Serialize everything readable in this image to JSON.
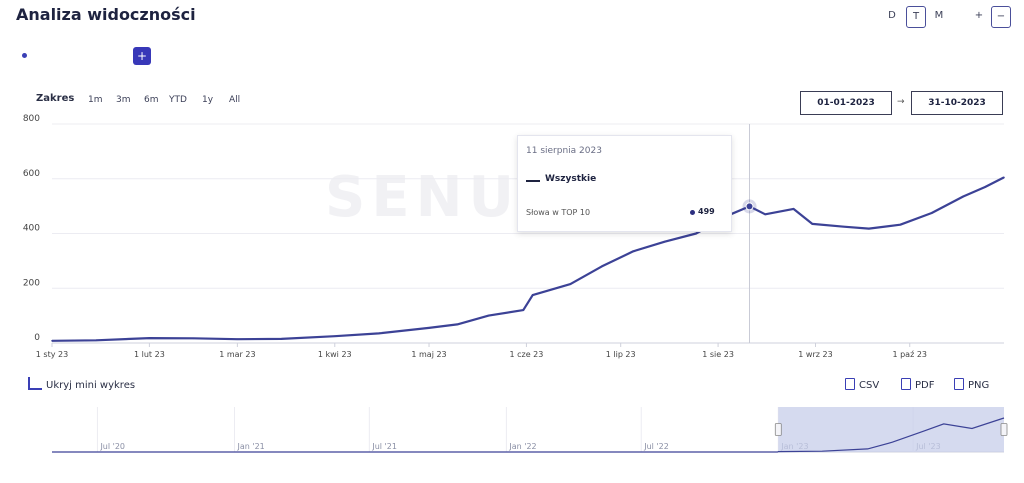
{
  "header": {
    "title": "Analiza widoczności"
  },
  "granularity": {
    "d": "D",
    "t": "T",
    "m": "M",
    "zoom_in": "+",
    "zoom_out": "−"
  },
  "series_controls": {
    "add": "+"
  },
  "range": {
    "label": "Zakres",
    "options": [
      "1m",
      "3m",
      "6m",
      "YTD",
      "1y",
      "All"
    ],
    "from": "01-01-2023",
    "to": "31-10-2023",
    "separator": "→"
  },
  "tooltip": {
    "date": "11 sierpnia 2023",
    "series": "Wszystkie",
    "metric": "Słowa w TOP 10",
    "value": "499"
  },
  "mini": {
    "toggle_label": "Ukryj mini wykres",
    "labels": [
      "Jul '20",
      "Jan '21",
      "Jul '21",
      "Jan '22",
      "Jul '22",
      "Jan '23",
      "Jul '23"
    ]
  },
  "export": {
    "csv": "CSV",
    "pdf": "PDF",
    "png": "PNG"
  },
  "watermark": "SENUTO",
  "chart_data": {
    "type": "line",
    "ylim": [
      0,
      800
    ],
    "yticks": [
      0,
      200,
      400,
      600,
      800
    ],
    "xticks": [
      "1 sty 23",
      "1 lut 23",
      "1 mar 23",
      "1 kwi 23",
      "1 maj 23",
      "1 cze 23",
      "1 lip 23",
      "1 sie 23",
      "1 wrz 23",
      "1 paź 23"
    ],
    "series": [
      {
        "name": "Wszystkie",
        "color": "#3c4296",
        "points": [
          [
            "2023-01-01",
            8
          ],
          [
            "2023-01-15",
            10
          ],
          [
            "2023-02-01",
            18
          ],
          [
            "2023-02-15",
            17
          ],
          [
            "2023-03-01",
            14
          ],
          [
            "2023-03-15",
            15
          ],
          [
            "2023-04-01",
            25
          ],
          [
            "2023-04-15",
            35
          ],
          [
            "2023-05-01",
            55
          ],
          [
            "2023-05-10",
            68
          ],
          [
            "2023-05-20",
            100
          ],
          [
            "2023-05-31",
            120
          ],
          [
            "2023-06-03",
            175
          ],
          [
            "2023-06-15",
            215
          ],
          [
            "2023-06-25",
            280
          ],
          [
            "2023-07-05",
            335
          ],
          [
            "2023-07-15",
            370
          ],
          [
            "2023-07-25",
            400
          ],
          [
            "2023-08-05",
            470
          ],
          [
            "2023-08-11",
            499
          ],
          [
            "2023-08-16",
            470
          ],
          [
            "2023-08-25",
            490
          ],
          [
            "2023-08-31",
            435
          ],
          [
            "2023-09-10",
            425
          ],
          [
            "2023-09-18",
            418
          ],
          [
            "2023-09-28",
            432
          ],
          [
            "2023-10-08",
            475
          ],
          [
            "2023-10-18",
            535
          ],
          [
            "2023-10-25",
            570
          ],
          [
            "2023-10-31",
            605
          ]
        ]
      }
    ],
    "mini_ylim": [
      0,
      800
    ],
    "mini_points": [
      [
        "2020-05-01",
        0
      ],
      [
        "2022-12-31",
        0
      ],
      [
        "2023-01-01",
        8
      ],
      [
        "2023-03-01",
        14
      ],
      [
        "2023-05-01",
        55
      ],
      [
        "2023-06-03",
        175
      ],
      [
        "2023-07-15",
        370
      ],
      [
        "2023-08-11",
        499
      ],
      [
        "2023-09-18",
        418
      ],
      [
        "2023-10-31",
        605
      ]
    ],
    "mini_selection": [
      "2023-01-01",
      "2023-10-31"
    ]
  }
}
